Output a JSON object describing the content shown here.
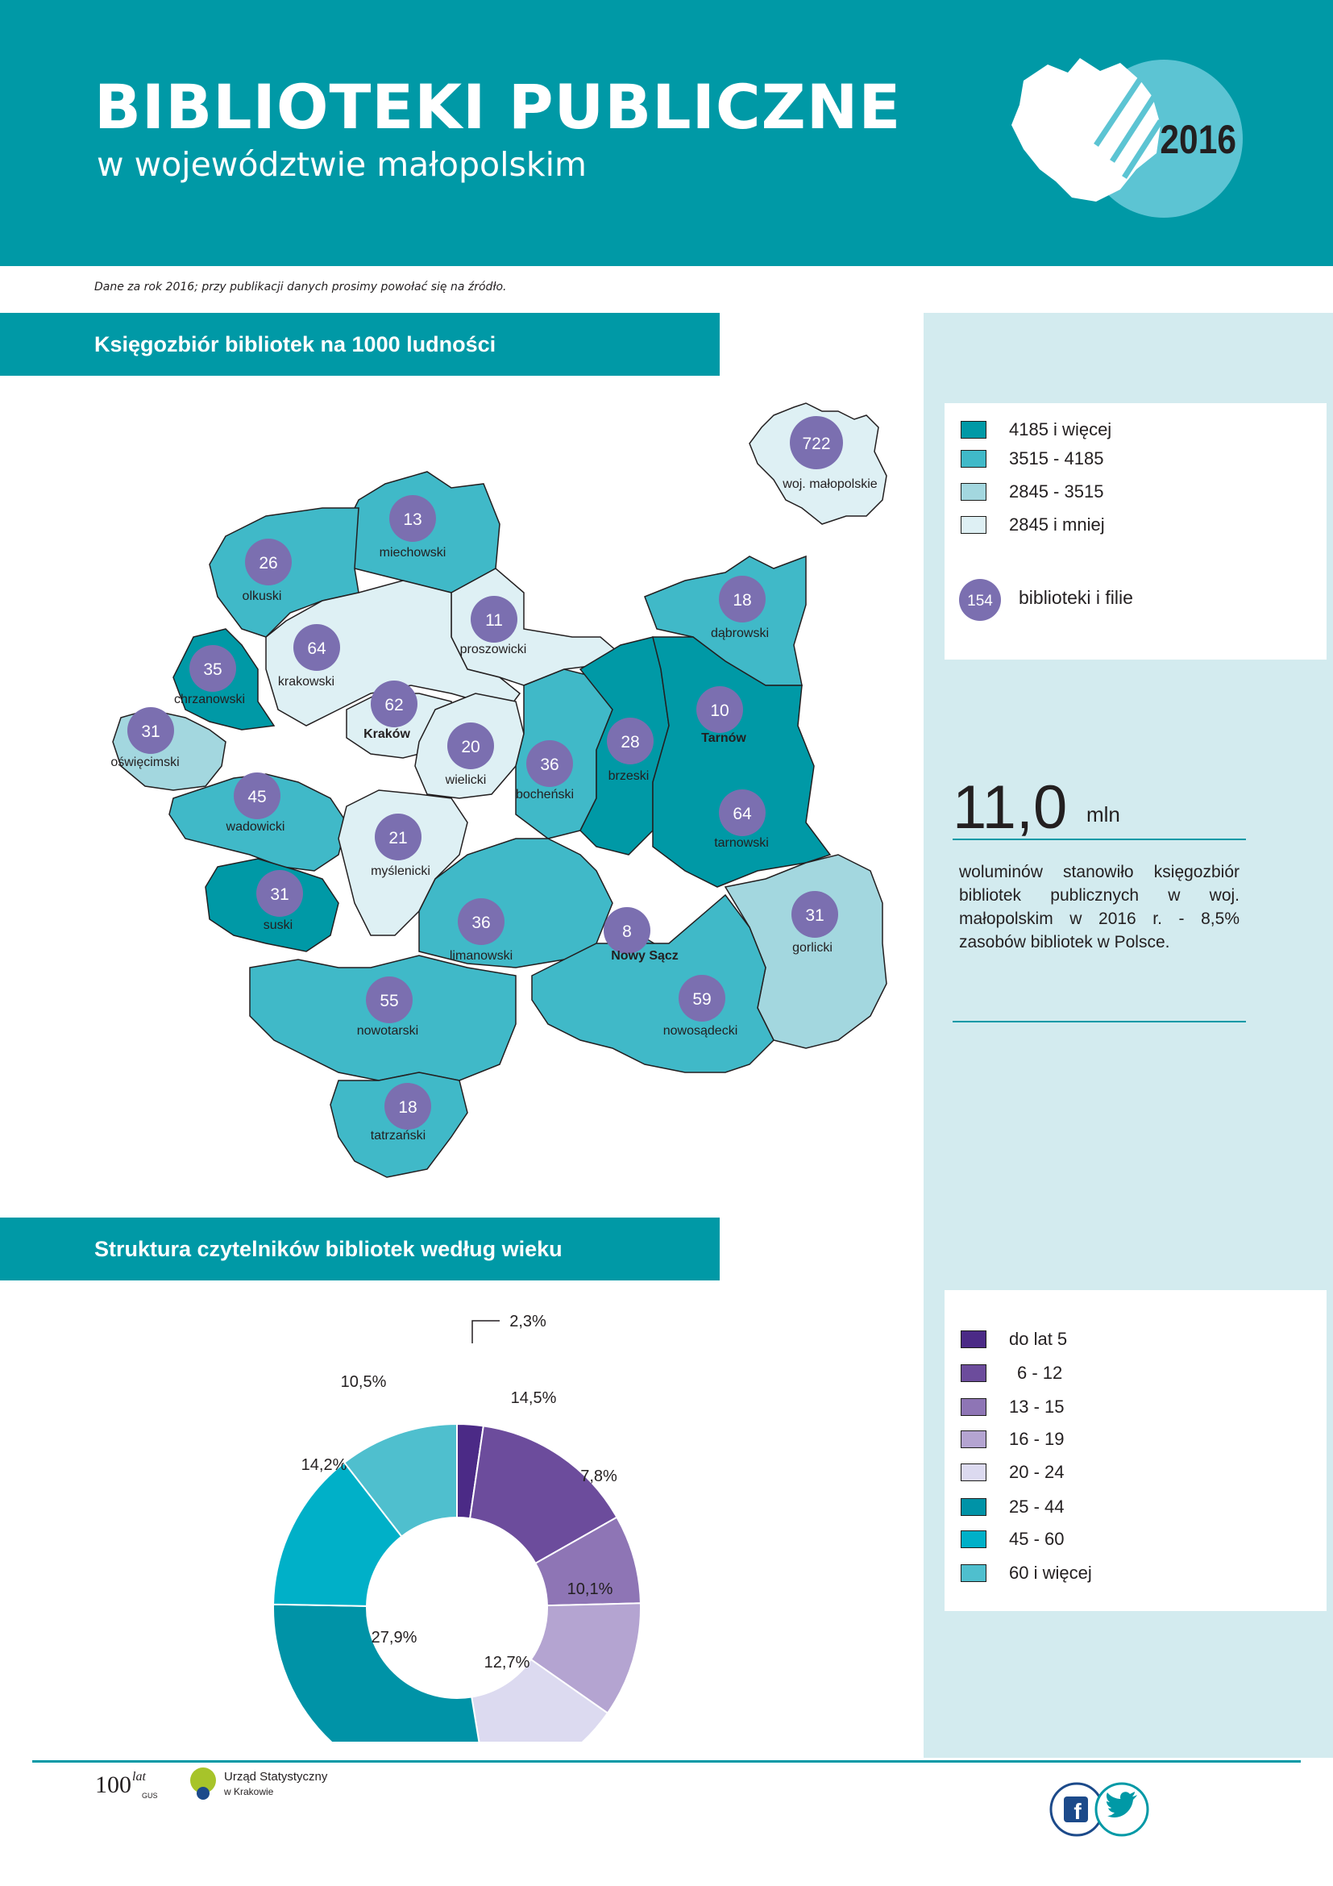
{
  "header": {
    "title": "BIBLIOTEKI PUBLICZNE",
    "subtitle": "w województwie małopolskim",
    "year": "2016"
  },
  "note": "Dane za rok 2016; przy publikacji danych prosimy powołać się na źródło.",
  "colors": {
    "header_bg": "#0099a6",
    "class1": "#0099a6",
    "class2": "#40b9c8",
    "class3": "#a3d7df",
    "class4": "#def0f4",
    "bubble": "#7b6fb0"
  },
  "map_section": {
    "title": "Księgozbiór bibliotek na 1000 ludności",
    "legend": [
      {
        "label": "4185 i więcej",
        "color": "#0099a6"
      },
      {
        "label": "3515 - 4185",
        "color": "#40b9c8"
      },
      {
        "label": "2845 - 3515",
        "color": "#a3d7df"
      },
      {
        "label": "2845 i mniej",
        "color": "#def0f4"
      }
    ],
    "bubble_legend": {
      "value": "154",
      "label": "biblioteki i filie"
    },
    "inset": {
      "value": "722",
      "label": "woj. małopolskie"
    },
    "regions": [
      {
        "name": "miechowski",
        "libraries": "13"
      },
      {
        "name": "olkuski",
        "libraries": "26"
      },
      {
        "name": "proszowicki",
        "libraries": "11"
      },
      {
        "name": "dąbrowski",
        "libraries": "18"
      },
      {
        "name": "krakowski",
        "libraries": "64"
      },
      {
        "name": "chrzanowski",
        "libraries": "35"
      },
      {
        "name": "Kraków",
        "libraries": "62"
      },
      {
        "name": "oświęcimski",
        "libraries": "31"
      },
      {
        "name": "wielicki",
        "libraries": "20"
      },
      {
        "name": "bocheński",
        "libraries": "36"
      },
      {
        "name": "brzeski",
        "libraries": "28"
      },
      {
        "name": "Tarnów",
        "libraries": "10"
      },
      {
        "name": "tarnowski",
        "libraries": "64"
      },
      {
        "name": "wadowicki",
        "libraries": "45"
      },
      {
        "name": "myślenicki",
        "libraries": "21"
      },
      {
        "name": "suski",
        "libraries": "31"
      },
      {
        "name": "limanowski",
        "libraries": "36"
      },
      {
        "name": "Nowy Sącz",
        "libraries": "8"
      },
      {
        "name": "gorlicki",
        "libraries": "31"
      },
      {
        "name": "nowotarski",
        "libraries": "55"
      },
      {
        "name": "nowosądecki",
        "libraries": "59"
      },
      {
        "name": "tatrzański",
        "libraries": "18"
      }
    ]
  },
  "stat": {
    "value": "11,0",
    "unit": "mln",
    "text": "woluminów stanowiło księgozbiór bibliotek publicznych w woj. małopolskim w 2016 r. - 8,5% zasobów bibliotek w Polsce."
  },
  "pie_section": {
    "title": "Struktura czytelników bibliotek według wieku"
  },
  "chart_data": {
    "type": "pie",
    "title": "Struktura czytelników bibliotek według wieku",
    "donut": true,
    "categories": [
      "do lat 5",
      "6 - 12",
      "13 - 15",
      "16 - 19",
      "20 - 24",
      "25 - 44",
      "45 - 60",
      "60 i więcej"
    ],
    "values": [
      2.3,
      14.5,
      7.8,
      10.1,
      12.7,
      27.9,
      14.2,
      10.5
    ],
    "labels": [
      "2,3%",
      "14,5%",
      "7,8%",
      "10,1%",
      "12,7%",
      "27,9%",
      "14,2%",
      "10,5%"
    ],
    "colors": [
      "#4b2a86",
      "#6c4c9c",
      "#8e75b5",
      "#b4a4d1",
      "#dcdaf0",
      "#0093a7",
      "#00b0c8",
      "#4fbfce"
    ]
  },
  "footer": {
    "logo_text_1": "Urząd Statystyczny",
    "logo_text_2": "w Krakowie",
    "gus_mark": "100 lat GUS",
    "social": [
      "facebook-icon",
      "twitter-icon"
    ]
  }
}
